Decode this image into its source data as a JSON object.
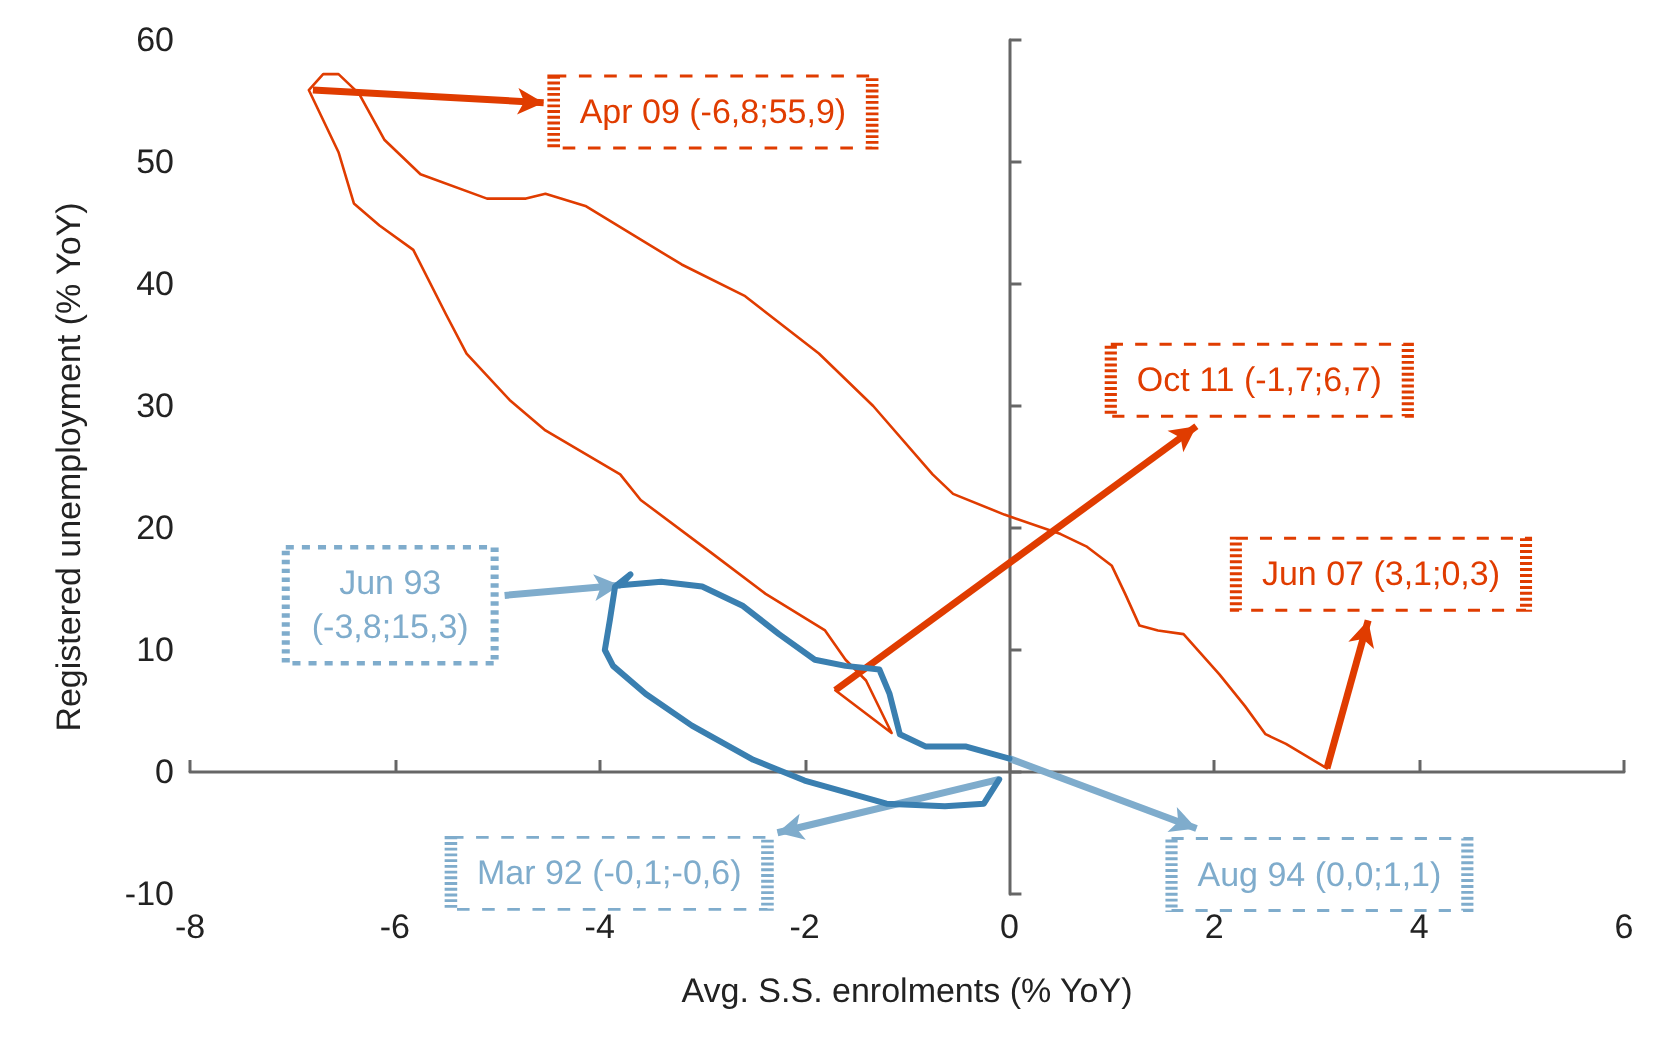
{
  "chart_data": {
    "type": "line",
    "xlabel": "Avg. S.S. enrolments (% YoY)",
    "ylabel": "Registered unemployment (% YoY)",
    "xlim": [
      -8,
      6
    ],
    "xticks": [
      -8,
      -6,
      -4,
      -2,
      0,
      2,
      4,
      6
    ],
    "ylim": [
      -10,
      60
    ],
    "yticks": [
      -10,
      0,
      10,
      20,
      30,
      40,
      50,
      60
    ],
    "marker": "none",
    "line_style": "solid",
    "series": [
      {
        "color": "#e03c00",
        "x": [
          3.1,
          2.7,
          2.5,
          2.3,
          2.05,
          1.7,
          1.45,
          1.27,
          1.13,
          1.0,
          0.75,
          0.5,
          -0.05,
          -0.55,
          -0.75,
          -1.33,
          -1.86,
          -2.58,
          -3.2,
          -4.14,
          -4.53,
          -4.72,
          -5.1,
          -5.75,
          -6.1,
          -6.35,
          -6.55,
          -6.7,
          -6.84,
          -6.55,
          -6.4,
          -6.15,
          -5.82,
          -5.5,
          -5.3,
          -4.88,
          -4.53,
          -3.8,
          -3.6,
          -2.9,
          -2.38,
          -1.8,
          -1.6,
          -1.4,
          -1.15,
          -1.7
        ],
        "values": [
          0.3,
          2.3,
          3.1,
          5.4,
          8.0,
          11.3,
          11.6,
          12.0,
          14.6,
          16.9,
          18.5,
          19.5,
          21.1,
          22.8,
          24.4,
          30.0,
          34.3,
          39.0,
          41.6,
          46.4,
          47.4,
          47.0,
          47.0,
          49.0,
          51.8,
          55.6,
          57.2,
          57.2,
          55.9,
          50.8,
          46.6,
          44.8,
          42.8,
          37.5,
          34.3,
          30.5,
          28.0,
          24.4,
          22.3,
          17.9,
          14.6,
          11.6,
          9.2,
          7.5,
          3.2,
          6.7
        ]
      },
      {
        "color": "#3a7fb0",
        "x": [
          -0.1,
          -0.25,
          -0.63,
          -1.2,
          -2.0,
          -2.5,
          -3.1,
          -3.55,
          -3.87,
          -3.95,
          -3.9,
          -3.85,
          -3.7,
          -3.8,
          -3.4,
          -3.0,
          -2.6,
          -2.25,
          -1.9,
          -1.6,
          -1.27,
          -1.17,
          -1.07,
          -0.82,
          -0.43,
          0.0
        ],
        "values": [
          -0.6,
          -2.6,
          -2.8,
          -2.6,
          -0.7,
          1.0,
          3.8,
          6.4,
          8.7,
          10.0,
          12.5,
          15.2,
          16.2,
          15.3,
          15.6,
          15.2,
          13.6,
          11.3,
          9.2,
          8.7,
          8.4,
          6.4,
          3.1,
          2.1,
          2.1,
          1.1
        ]
      }
    ],
    "annotations": [
      {
        "text": "Apr 09 (-6,8;55,9)",
        "x": -6.8,
        "y": 55.9
      },
      {
        "text": "Oct 11 (-1,7;6,7)",
        "x": -1.7,
        "y": 6.7
      },
      {
        "text": "Jun 07 (3,1;0,3)",
        "x": 3.1,
        "y": 0.3
      },
      {
        "text": "Jun 93\n(-3,8;15,3)",
        "x": -3.8,
        "y": 15.3
      },
      {
        "text": "Mar 92 (-0,1;-0,6)",
        "x": -0.1,
        "y": -0.6
      },
      {
        "text": "Aug 94 (0,0;1,1)",
        "x": 0.0,
        "y": 1.1
      }
    ]
  }
}
